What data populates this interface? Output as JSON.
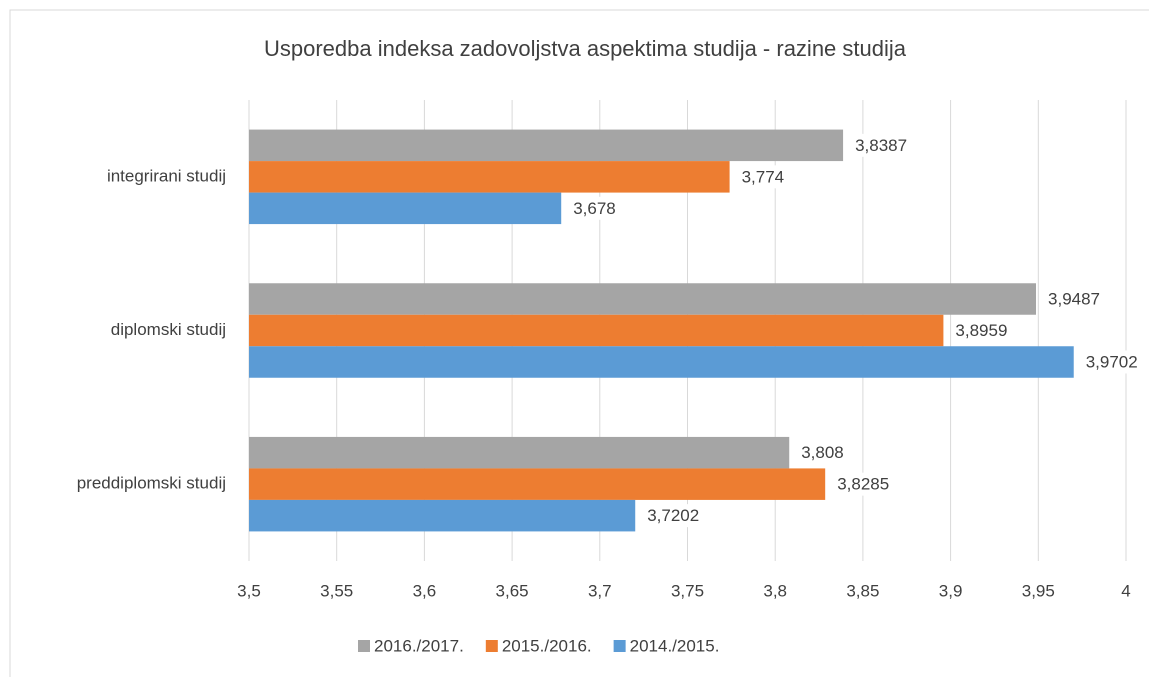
{
  "chart_data": {
    "type": "barh",
    "title": "Usporedba indeksa zadovoljstva aspektima studija - razine studija",
    "categories": [
      "integrirani studij",
      "diplomski studij",
      "preddiplomski studij"
    ],
    "series": [
      {
        "name": "2016./2017.",
        "color": "#a5a5a5",
        "values": [
          3.8387,
          3.9487,
          3.808
        ],
        "value_labels": [
          "3,8387",
          "3,9487",
          "3,808"
        ]
      },
      {
        "name": "2015./2016.",
        "color": "#ed7d31",
        "values": [
          3.774,
          3.8959,
          3.8285
        ],
        "value_labels": [
          "3,774",
          "3,8959",
          "3,8285"
        ]
      },
      {
        "name": "2014./2015.",
        "color": "#5b9bd5",
        "values": [
          3.678,
          3.9702,
          3.7202
        ],
        "value_labels": [
          "3,678",
          "3,9702",
          "3,7202"
        ]
      }
    ],
    "xlim": [
      3.5,
      4
    ],
    "xticks": [
      {
        "value": 3.5,
        "label": "3,5"
      },
      {
        "value": 3.55,
        "label": "3,55"
      },
      {
        "value": 3.6,
        "label": "3,6"
      },
      {
        "value": 3.65,
        "label": "3,65"
      },
      {
        "value": 3.7,
        "label": "3,7"
      },
      {
        "value": 3.75,
        "label": "3,75"
      },
      {
        "value": 3.8,
        "label": "3,8"
      },
      {
        "value": 3.85,
        "label": "3,85"
      },
      {
        "value": 3.9,
        "label": "3,9"
      },
      {
        "value": 3.95,
        "label": "3,95"
      },
      4
    ],
    "grid": true,
    "legend": "bottom"
  }
}
